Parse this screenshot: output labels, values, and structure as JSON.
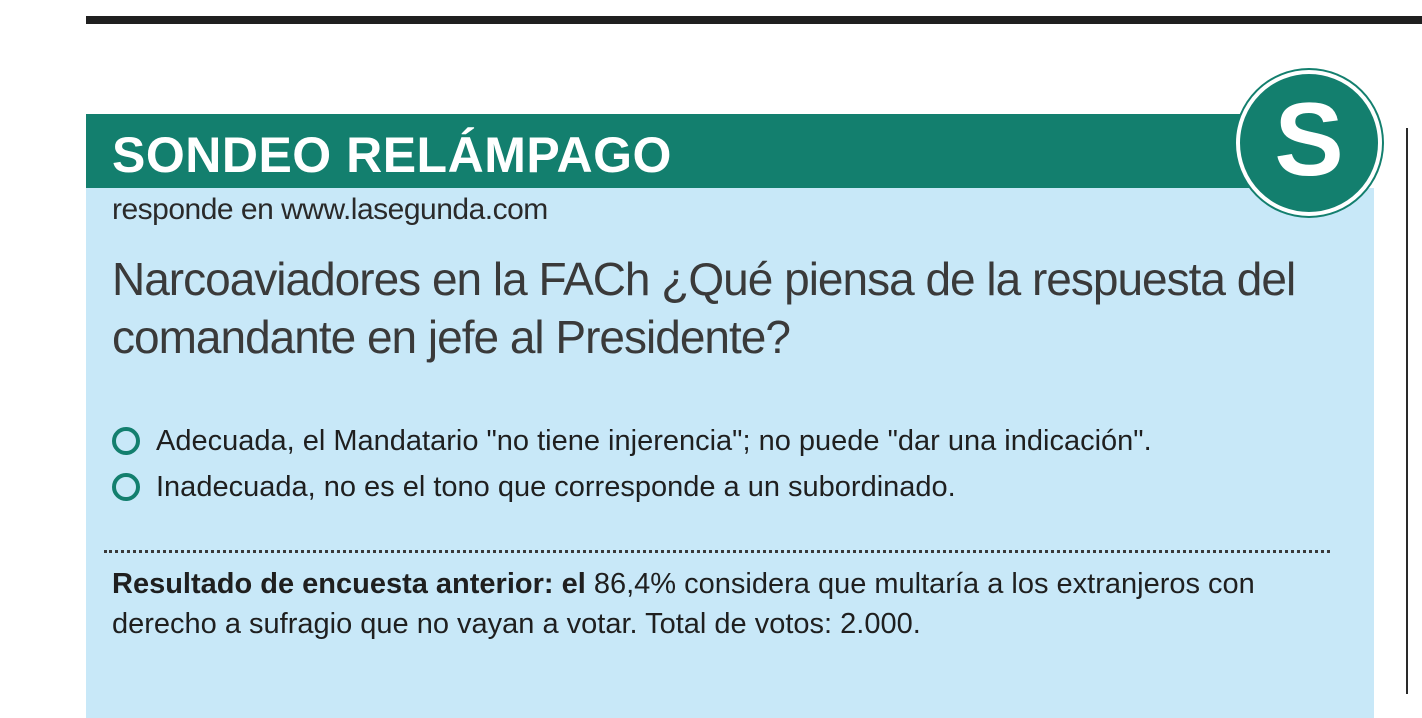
{
  "header": {
    "title": "SONDEO RELÁMPAGO",
    "badge_letter": "S",
    "subtitle": "responde en www.lasegunda.com"
  },
  "poll": {
    "question": "Narcoaviadores en la FACh ¿Qué piensa de la respuesta del comandante en jefe al Presidente?",
    "options": [
      {
        "label": "Adecuada, el Mandatario \"no tiene injerencia\"; no puede \"dar una indicación\"."
      },
      {
        "label": "Inadecuada, no es el tono que corresponde a un subordinado."
      }
    ]
  },
  "previous_result": {
    "lead": "Resultado de encuesta anterior: el",
    "text": " 86,4% considera que multaría a los extranjeros con derecho a sufragio que no vayan a votar. Total de votos: 2.000."
  },
  "colors": {
    "brand_green": "#137f6e",
    "panel_blue": "#c8e8f8"
  }
}
